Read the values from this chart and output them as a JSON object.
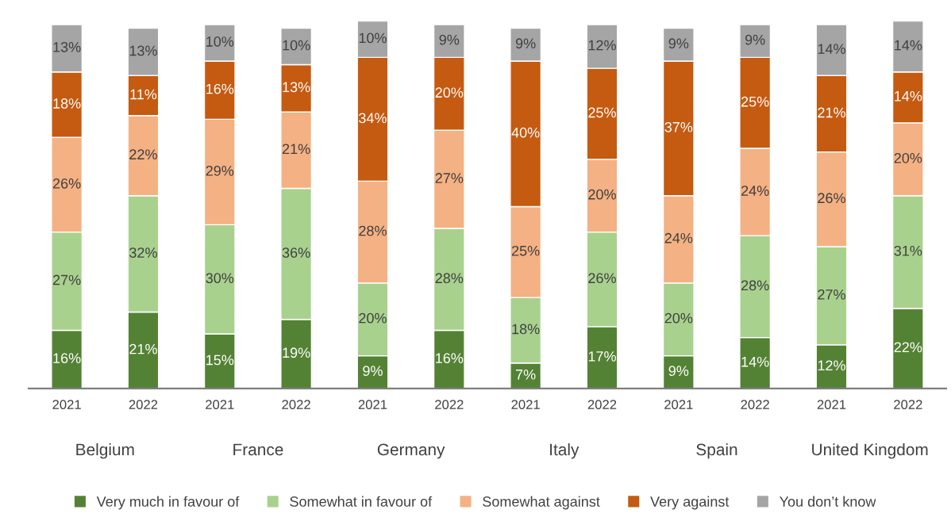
{
  "chart_data": {
    "type": "bar",
    "stacked": true,
    "grid": false,
    "legend": "bottom",
    "categories": [
      "2021",
      "2022",
      "2021",
      "2022",
      "2021",
      "2022",
      "2021",
      "2022",
      "2021",
      "2022",
      "2021",
      "2022"
    ],
    "annotations": [
      "Belgium",
      "France",
      "Germany",
      "Italy",
      "Spain",
      "United Kingdom"
    ],
    "series": [
      {
        "name": "Very much in favour of",
        "color": "#548235",
        "values": [
          16,
          21,
          15,
          19,
          9,
          16,
          7,
          17,
          9,
          14,
          12,
          22
        ],
        "value_labels": [
          "16%",
          "21%",
          "15%",
          "19%",
          "9%",
          "16%",
          "7%",
          "17%",
          "9%",
          "14%",
          "12%",
          "22%"
        ]
      },
      {
        "name": "Somewhat in favour of",
        "color": "#a9d18e",
        "values": [
          27,
          32,
          30,
          36,
          20,
          28,
          18,
          26,
          20,
          28,
          27,
          31
        ],
        "value_labels": [
          "27%",
          "32%",
          "30%",
          "36%",
          "20%",
          "28%",
          "18%",
          "26%",
          "20%",
          "28%",
          "27%",
          "31%"
        ]
      },
      {
        "name": "Somewhat against",
        "color": "#f4b183",
        "values": [
          26,
          22,
          29,
          21,
          28,
          27,
          25,
          20,
          24,
          24,
          26,
          20
        ],
        "value_labels": [
          "26%",
          "22%",
          "29%",
          "21%",
          "28%",
          "27%",
          "25%",
          "20%",
          "24%",
          "24%",
          "26%",
          "20%"
        ]
      },
      {
        "name": "Very against",
        "color": "#c55a11",
        "values": [
          18,
          11,
          16,
          13,
          34,
          20,
          40,
          25,
          37,
          25,
          21,
          14
        ],
        "value_labels": [
          "18%",
          "11%",
          "16%",
          "13%",
          "34%",
          "20%",
          "40%",
          "25%",
          "37%",
          "25%",
          "21%",
          "14%"
        ]
      },
      {
        "name": "You don’t know",
        "color": "#a5a5a5",
        "values": [
          13,
          13,
          10,
          10,
          10,
          9,
          9,
          12,
          9,
          9,
          14,
          14
        ],
        "value_labels": [
          "13%",
          "13%",
          "10%",
          "10%",
          "10%",
          "9%",
          "9%",
          "12%",
          "9%",
          "9%",
          "14%",
          "14%"
        ]
      }
    ]
  }
}
